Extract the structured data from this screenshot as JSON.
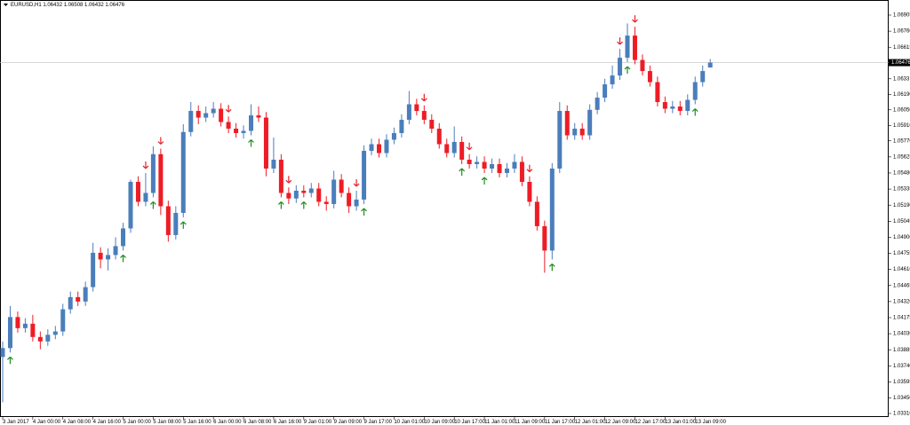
{
  "chart_data": {
    "type": "candlestick",
    "title": "EURUSD,H1  1.06432 1.06508 1.06432 1.06476",
    "categories": [
      "3 Jan 2017",
      null,
      null,
      null,
      "4 Jan 00:00",
      null,
      null,
      null,
      "4 Jan 08:00",
      null,
      null,
      null,
      "4 Jan 16:00",
      null,
      null,
      null,
      "5 Jan 00:00",
      null,
      null,
      null,
      "5 Jan 08:00",
      null,
      null,
      null,
      "5 Jan 16:00",
      null,
      null,
      null,
      "6 Jan 00:00",
      null,
      null,
      null,
      "6 Jan 08:00",
      null,
      null,
      null,
      "6 Jan 16:00",
      null,
      null,
      null,
      "9 Jan 01:00",
      null,
      null,
      null,
      "9 Jan 09:00",
      null,
      null,
      null,
      "9 Jan 17:00",
      null,
      null,
      null,
      "10 Jan 01:00",
      null,
      null,
      null,
      "10 Jan 09:00",
      null,
      null,
      null,
      "10 Jan 17:00",
      null,
      null,
      null,
      "11 Jan 01:00",
      null,
      null,
      null,
      "11 Jan 09:00",
      null,
      null,
      null,
      "11 Jan 17:00",
      null,
      null,
      null,
      "12 Jan 01:00",
      null,
      null,
      null,
      "12 Jan 09:00",
      null,
      null,
      null,
      "12 Jan 17:00",
      null,
      null,
      null,
      "13 Jan 01:00",
      null,
      null,
      null,
      "13 Jan 09:00",
      null,
      null
    ],
    "open": [
      1.0382,
      1.039,
      1.0418,
      1.0408,
      1.0412,
      1.04,
      1.0396,
      1.0402,
      1.0405,
      1.0425,
      1.0436,
      1.0432,
      1.0445,
      1.0476,
      1.047,
      1.0474,
      1.0482,
      1.0498,
      1.054,
      1.0522,
      1.053,
      1.0565,
      1.0518,
      1.0492,
      1.0512,
      1.0585,
      1.0604,
      1.0598,
      1.0602,
      1.0606,
      1.0594,
      1.0588,
      1.0584,
      1.0586,
      1.06,
      1.0598,
      1.0552,
      1.056,
      1.053,
      1.0525,
      1.0532,
      1.053,
      1.0534,
      1.0522,
      1.052,
      1.0542,
      1.053,
      1.0518,
      1.0524,
      1.0568,
      1.0574,
      1.0566,
      1.0578,
      1.0584,
      1.0596,
      1.061,
      1.0604,
      1.0596,
      1.0588,
      1.0574,
      1.0566,
      1.0576,
      1.056,
      1.0556,
      1.0558,
      1.0552,
      1.0556,
      1.0548,
      1.0552,
      1.0558,
      1.054,
      1.0522,
      1.05,
      1.0478,
      1.0552,
      1.0604,
      1.0582,
      1.0588,
      1.0582,
      1.0605,
      1.0616,
      1.0628,
      1.0636,
      1.0652,
      1.0672,
      1.065,
      1.064,
      1.063,
      1.0612,
      1.0606,
      1.0608,
      1.0604,
      1.0614,
      1.063,
      1.06432
    ],
    "high": [
      1.0396,
      1.0428,
      1.0423,
      1.0417,
      1.042,
      1.0405,
      1.0407,
      1.041,
      1.043,
      1.0441,
      1.0441,
      1.045,
      1.0485,
      1.0481,
      1.048,
      1.049,
      1.0503,
      1.0542,
      1.0545,
      1.0548,
      1.0572,
      1.057,
      1.0523,
      1.0518,
      1.0592,
      1.0612,
      1.0609,
      1.0608,
      1.0612,
      1.0611,
      1.0599,
      1.0593,
      1.0591,
      1.061,
      1.0608,
      1.0603,
      1.058,
      1.0565,
      1.0535,
      1.0537,
      1.0537,
      1.0539,
      1.0539,
      1.0527,
      1.055,
      1.0547,
      1.0535,
      1.0532,
      1.0573,
      1.0579,
      1.0579,
      1.0583,
      1.0589,
      1.0601,
      1.0622,
      1.0615,
      1.0609,
      1.0601,
      1.0593,
      1.0579,
      1.059,
      1.0581,
      1.0565,
      1.0563,
      1.0563,
      1.0561,
      1.0561,
      1.0557,
      1.0565,
      1.0563,
      1.0545,
      1.0527,
      1.0505,
      1.0557,
      1.0612,
      1.0609,
      1.0593,
      1.0593,
      1.061,
      1.0621,
      1.0633,
      1.0645,
      1.066,
      1.0683,
      1.068,
      1.0655,
      1.0645,
      1.0635,
      1.0617,
      1.0613,
      1.0613,
      1.0619,
      1.0635,
      1.0645,
      1.06508
    ],
    "low": [
      1.0341,
      1.0386,
      1.0404,
      1.0404,
      1.0396,
      1.0389,
      1.0392,
      1.0398,
      1.0401,
      1.0421,
      1.0428,
      1.0428,
      1.0441,
      1.0462,
      1.046,
      1.047,
      1.0478,
      1.0494,
      1.0518,
      1.0518,
      1.0526,
      1.051,
      1.0486,
      1.0488,
      1.0508,
      1.0581,
      1.0592,
      1.0594,
      1.0598,
      1.059,
      1.0584,
      1.058,
      1.0579,
      1.0582,
      1.0594,
      1.0545,
      1.0548,
      1.0526,
      1.052,
      1.0521,
      1.0526,
      1.0526,
      1.0518,
      1.0514,
      1.0516,
      1.0526,
      1.0512,
      1.0514,
      1.052,
      1.0564,
      1.0562,
      1.0562,
      1.0574,
      1.058,
      1.0592,
      1.06,
      1.0592,
      1.0584,
      1.057,
      1.0562,
      1.0562,
      1.0556,
      1.0552,
      1.0552,
      1.0548,
      1.0548,
      1.0544,
      1.0544,
      1.0548,
      1.0536,
      1.0518,
      1.0496,
      1.0458,
      1.047,
      1.0548,
      1.0578,
      1.0578,
      1.0578,
      1.0578,
      1.0601,
      1.0612,
      1.0624,
      1.0632,
      1.0648,
      1.0646,
      1.0636,
      1.0626,
      1.0608,
      1.0602,
      1.0602,
      1.06,
      1.06,
      1.061,
      1.0626,
      1.06432
    ],
    "close": [
      1.039,
      1.0418,
      1.0408,
      1.0412,
      1.04,
      1.0396,
      1.0402,
      1.0405,
      1.0425,
      1.0436,
      1.0432,
      1.0445,
      1.0476,
      1.047,
      1.0474,
      1.0482,
      1.0498,
      1.054,
      1.0522,
      1.053,
      1.0565,
      1.0518,
      1.0492,
      1.0512,
      1.0585,
      1.0604,
      1.0598,
      1.0602,
      1.0606,
      1.0594,
      1.0588,
      1.0584,
      1.0586,
      1.06,
      1.0598,
      1.0552,
      1.056,
      1.053,
      1.0525,
      1.0532,
      1.053,
      1.0534,
      1.0522,
      1.052,
      1.0542,
      1.053,
      1.0518,
      1.0524,
      1.0568,
      1.0574,
      1.0566,
      1.0578,
      1.0584,
      1.0596,
      1.061,
      1.0604,
      1.0596,
      1.0588,
      1.0574,
      1.0566,
      1.0576,
      1.056,
      1.0556,
      1.0558,
      1.0552,
      1.0556,
      1.0548,
      1.0552,
      1.0558,
      1.054,
      1.0522,
      1.05,
      1.0478,
      1.0552,
      1.0604,
      1.0582,
      1.0588,
      1.0582,
      1.0605,
      1.0616,
      1.0628,
      1.0636,
      1.0652,
      1.0672,
      1.065,
      1.064,
      1.063,
      1.0612,
      1.0606,
      1.0608,
      1.0604,
      1.0614,
      1.063,
      1.064,
      1.06476
    ],
    "up_color": "#4a7ebb",
    "down_color": "#ee1c25",
    "down_arrows": [
      19,
      21,
      30,
      38,
      47,
      56,
      62,
      70,
      82,
      84
    ],
    "up_arrows": [
      1,
      16,
      20,
      24,
      33,
      37,
      40,
      48,
      61,
      64,
      73,
      83,
      92
    ],
    "down_arrow_color": "#e8202a",
    "up_arrow_color": "#1e8c1e",
    "last_price": 1.06476,
    "ylim": [
      1.03278,
      1.06961
    ],
    "yticks": [
      1.06905,
      {
        "value": 1.0676,
        "label": "1.06760"
      },
      1.06615,
      1.0633,
      {
        "value": 1.0619,
        "label": "1.06190"
      },
      {
        "value": 1.0605,
        "label": "1.06050"
      },
      {
        "value": 1.0591,
        "label": "1.05910"
      },
      {
        "value": 1.0577,
        "label": "1.05770"
      },
      1.05625,
      {
        "value": 1.0548,
        "label": "1.05480"
      },
      1.05335,
      {
        "value": 1.0519,
        "label": "1.05190"
      },
      1.05045,
      {
        "value": 1.049,
        "label": "1.04900"
      },
      1.04755,
      {
        "value": 1.0461,
        "label": "1.04610"
      },
      1.04465,
      {
        "value": 1.0432,
        "label": "1.04320"
      },
      1.04175,
      {
        "value": 1.0403,
        "label": "1.04030"
      },
      1.03885,
      {
        "value": 1.0374,
        "label": "1.03740"
      },
      1.03595,
      {
        "value": 1.0345,
        "label": "1.03450"
      },
      {
        "value": 1.0331,
        "label": "1.03310"
      }
    ]
  }
}
